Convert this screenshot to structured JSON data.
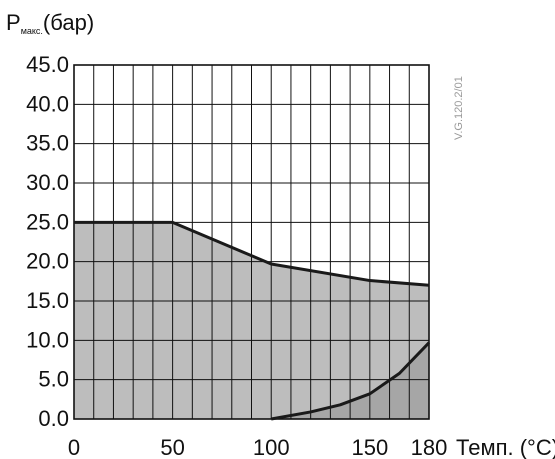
{
  "chart_data": {
    "type": "area",
    "ylabel_main": "P",
    "ylabel_sub": "макс.",
    "ylabel_unit": "(бар)",
    "xlabel": "Темп. (°C)",
    "reference_code": "V.G.120.2/01",
    "xlim": [
      0,
      180
    ],
    "ylim": [
      0,
      45
    ],
    "x_ticks": [
      "0",
      "50",
      "100",
      "150",
      "180"
    ],
    "x_tick_values": [
      0,
      50,
      100,
      150,
      180
    ],
    "y_ticks": [
      "0.0",
      "5.0",
      "10.0",
      "15.0",
      "20.0",
      "25.0",
      "30.0",
      "35.0",
      "40.0",
      "45.0"
    ],
    "y_tick_values": [
      0,
      5,
      10,
      15,
      20,
      25,
      30,
      35,
      40,
      45
    ],
    "grid": true,
    "grid_x_step": 10,
    "grid_y_step": 5,
    "series": [
      {
        "x": [
          0,
          50,
          100,
          150,
          180
        ],
        "y": [
          25,
          25,
          19.7,
          17.6,
          17
        ]
      },
      {
        "x": [
          100,
          120,
          135,
          150,
          165,
          180
        ],
        "y": [
          0,
          0.9,
          1.8,
          3.2,
          5.8,
          9.7
        ]
      }
    ],
    "colors": {
      "fill_upper": "#bdbdbd",
      "fill_lower": "#a6a6a6",
      "curve": "#1a1a1a",
      "grid": "#111111"
    }
  }
}
